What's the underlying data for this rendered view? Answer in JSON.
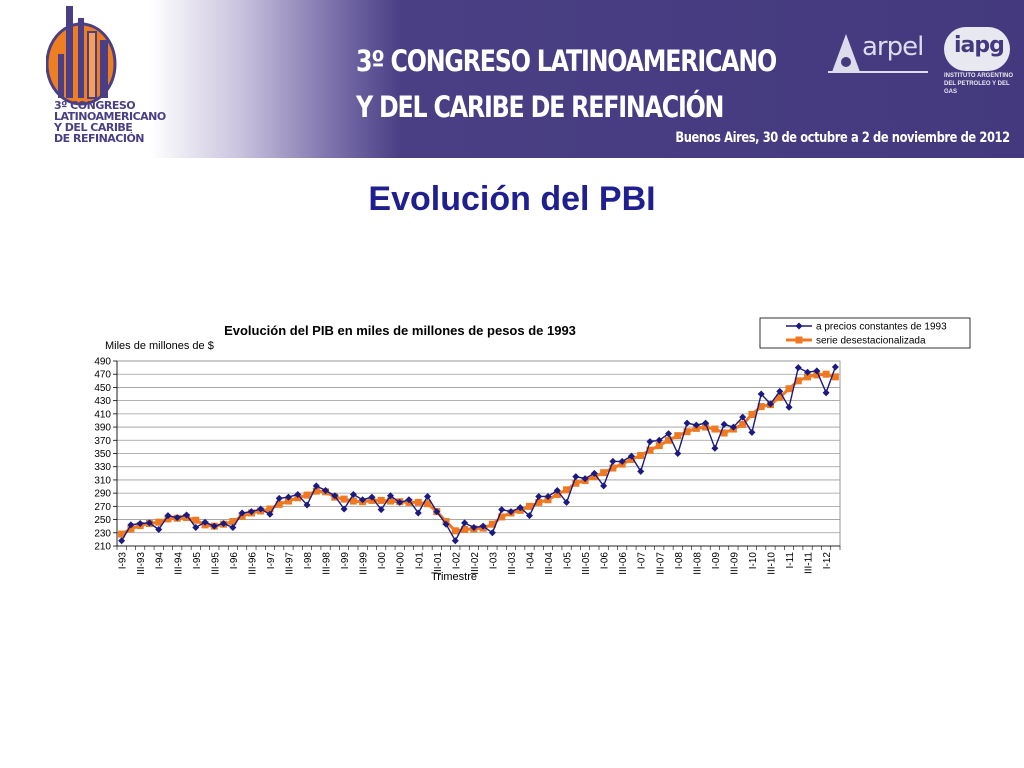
{
  "header": {
    "logo_lines": [
      "3º CONGRESO",
      "LATINOAMERICANO",
      "Y DEL CARIBE",
      "DE REFINACIÓN"
    ],
    "title_lines": [
      "3º CONGRESO LATINOAMERICANO",
      "Y DEL CARIBE DE REFINACIÓN"
    ],
    "date": "Buenos Aires, 30 de octubre a 2 de noviembre de 2012",
    "arpel_logo": "arpel",
    "iapg_logo": "iapg",
    "iapg_sub_lines": [
      "INSTITUTO ARGENTINO",
      "DEL PETROLEO Y DEL GAS"
    ],
    "colors": {
      "banner": "#44397e",
      "logo_orange": "#ef7d22"
    }
  },
  "slide": {
    "title": "Evolución del PBI"
  },
  "chart_data": {
    "type": "line",
    "title": "Evolución del PIB en miles de millones de pesos de 1993",
    "ylabel": "Miles de millones de $",
    "xlabel": "Trimestre",
    "ylim": [
      210,
      490
    ],
    "yticks": [
      210,
      230,
      250,
      270,
      290,
      310,
      330,
      350,
      370,
      390,
      410,
      430,
      450,
      470,
      490
    ],
    "grid": true,
    "legend_position": "top-right",
    "x": [
      "I-93",
      "II-93",
      "III-93",
      "IV-93",
      "I-94",
      "II-94",
      "III-94",
      "IV-94",
      "I-95",
      "II-95",
      "III-95",
      "IV-95",
      "I-96",
      "II-96",
      "III-96",
      "IV-96",
      "I-97",
      "II-97",
      "III-97",
      "IV-97",
      "I-98",
      "II-98",
      "III-98",
      "IV-98",
      "I-99",
      "II-99",
      "III-99",
      "IV-99",
      "I-00",
      "II-00",
      "III-00",
      "IV-00",
      "I-01",
      "II-01",
      "III-01",
      "IV-01",
      "I-02",
      "II-02",
      "III-02",
      "IV-02",
      "I-03",
      "II-03",
      "III-03",
      "IV-03",
      "I-04",
      "II-04",
      "III-04",
      "IV-04",
      "I-05",
      "II-05",
      "III-05",
      "IV-05",
      "I-06",
      "II-06",
      "III-06",
      "IV-06",
      "I-07",
      "II-07",
      "III-07",
      "IV-07",
      "I-08",
      "II-08",
      "III-08",
      "IV-08",
      "I-09",
      "II-09",
      "III-09",
      "IV-09",
      "I-10",
      "II-10",
      "III-10",
      "IV-10",
      "I-11",
      "II-11",
      "III-11",
      "IV-11",
      "I-12",
      "II-12"
    ],
    "x_tick_labels": [
      "I-93",
      "III-93",
      "I-94",
      "III-94",
      "I-95",
      "III-95",
      "I-96",
      "III-96",
      "I-97",
      "III-97",
      "I-98",
      "III-98",
      "I-99",
      "III-99",
      "I-00",
      "III-00",
      "I-01",
      "III-01",
      "I-02",
      "III-02",
      "I-03",
      "III-03",
      "I-04",
      "III-04",
      "I-05",
      "III-05",
      "I-06",
      "III-06",
      "I-07",
      "III-07",
      "I-08",
      "III-08",
      "I-09",
      "III-09",
      "I-10",
      "III-10",
      "I-11",
      "III-11",
      "I-12"
    ],
    "series": [
      {
        "name": "a precios constantes de 1993",
        "color": "#1a1a80",
        "marker": "diamond",
        "values": [
          218,
          242,
          244,
          245,
          235,
          256,
          253,
          257,
          238,
          246,
          240,
          244,
          238,
          260,
          262,
          266,
          258,
          282,
          284,
          288,
          272,
          301,
          294,
          286,
          266,
          288,
          280,
          284,
          265,
          286,
          276,
          280,
          260,
          285,
          262,
          243,
          218,
          245,
          238,
          240,
          230,
          265,
          262,
          268,
          256,
          285,
          285,
          294,
          276,
          315,
          312,
          320,
          301,
          338,
          338,
          346,
          323,
          368,
          370,
          380,
          350,
          396,
          393,
          396,
          358,
          394,
          390,
          405,
          382,
          440,
          425,
          444,
          420,
          480,
          473,
          475,
          442,
          481
        ]
      },
      {
        "name": "serie desestacionalizada",
        "color": "#f07820",
        "marker": "square",
        "values": [
          228,
          236,
          241,
          244,
          246,
          251,
          252,
          253,
          249,
          242,
          240,
          243,
          247,
          255,
          260,
          263,
          266,
          273,
          278,
          283,
          287,
          293,
          292,
          284,
          281,
          278,
          277,
          279,
          279,
          278,
          277,
          276,
          276,
          274,
          262,
          247,
          233,
          235,
          236,
          237,
          243,
          254,
          260,
          264,
          270,
          276,
          280,
          288,
          295,
          305,
          309,
          315,
          321,
          328,
          334,
          341,
          347,
          355,
          362,
          370,
          377,
          383,
          388,
          390,
          387,
          381,
          387,
          394,
          409,
          421,
          424,
          435,
          448,
          460,
          466,
          469,
          470,
          466
        ]
      }
    ]
  }
}
